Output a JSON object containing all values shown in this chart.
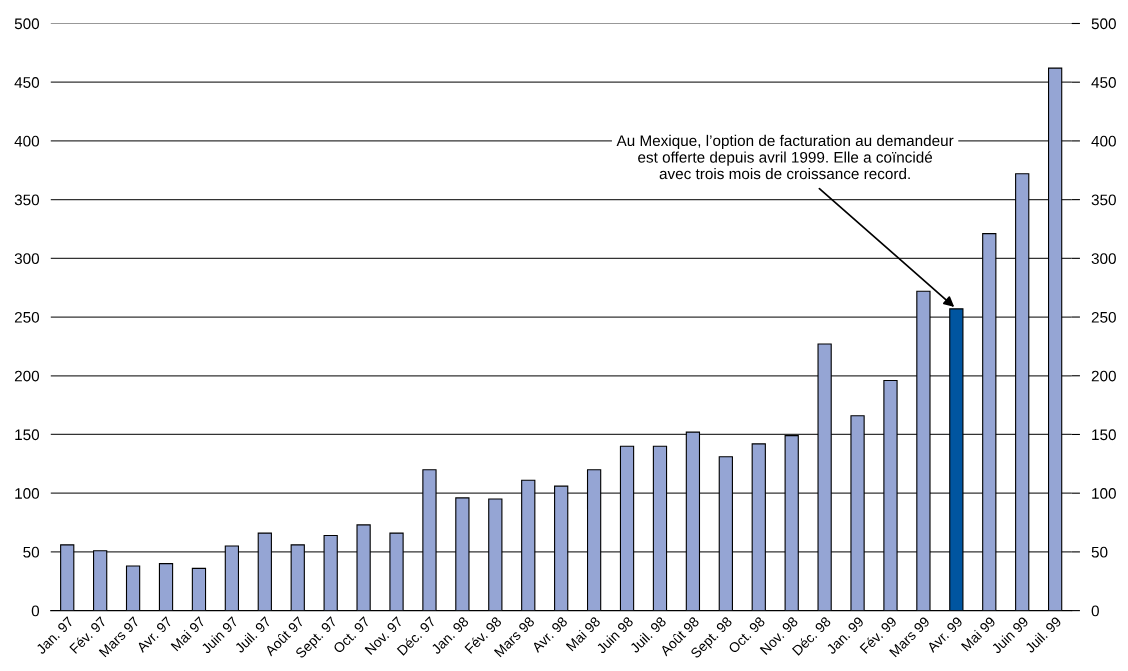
{
  "chart_data": {
    "type": "bar",
    "categories": [
      "Jan. 97",
      "Fév. 97",
      "Mars 97",
      "Avr. 97",
      "Mai 97",
      "Juin 97",
      "Juil. 97",
      "Août 97",
      "Sept. 97",
      "Oct. 97",
      "Nov. 97",
      "Déc. 97",
      "Jan. 98",
      "Fév. 98",
      "Mars 98",
      "Avr. 98",
      "Mai 98",
      "Juin 98",
      "Juil. 98",
      "Août 98",
      "Sept. 98",
      "Oct. 98",
      "Nov. 98",
      "Déc. 98",
      "Jan. 99",
      "Fév. 99",
      "Mars 99",
      "Avr. 99",
      "Mai 99",
      "Juin 99",
      "Juil. 99"
    ],
    "values": [
      56,
      51,
      38,
      40,
      36,
      55,
      66,
      56,
      64,
      73,
      66,
      120,
      96,
      95,
      111,
      106,
      120,
      140,
      140,
      152,
      131,
      142,
      149,
      227,
      166,
      196,
      272,
      257,
      321,
      372,
      462
    ],
    "colors": [
      "#95a5d4",
      "#95a5d4",
      "#95a5d4",
      "#95a5d4",
      "#95a5d4",
      "#95a5d4",
      "#95a5d4",
      "#95a5d4",
      "#95a5d4",
      "#95a5d4",
      "#95a5d4",
      "#95a5d4",
      "#95a5d4",
      "#95a5d4",
      "#95a5d4",
      "#95a5d4",
      "#95a5d4",
      "#95a5d4",
      "#95a5d4",
      "#95a5d4",
      "#95a5d4",
      "#95a5d4",
      "#95a5d4",
      "#95a5d4",
      "#95a5d4",
      "#95a5d4",
      "#95a5d4",
      "#0055a0",
      "#95a5d4",
      "#95a5d4",
      "#95a5d4"
    ],
    "ylim": [
      0,
      500
    ],
    "yticks": [
      0,
      50,
      100,
      150,
      200,
      250,
      300,
      350,
      400,
      450,
      500
    ],
    "y2lim": [
      0,
      500
    ],
    "y2ticks": [
      0,
      50,
      100,
      150,
      200,
      250,
      300,
      350,
      400,
      450,
      500
    ],
    "grid": "y",
    "annotations": [
      {
        "text": "Au Mexique, l’option de facturation au demandeur\nest offerte depuis avril 1999. Elle a coïncidé\navec trois mois de croissance record.",
        "x": "Avr. 99",
        "y": 257
      }
    ]
  }
}
